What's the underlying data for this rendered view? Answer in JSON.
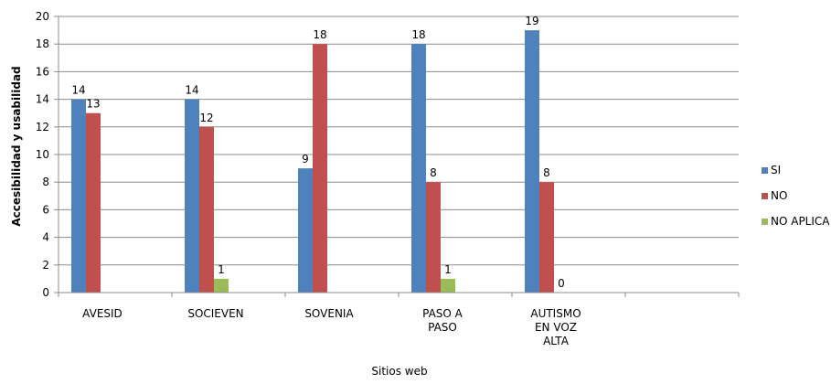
{
  "chart_data": {
    "type": "bar",
    "ylabel": "Accesibilidad y usabilidad",
    "xlabel": "Sitios web",
    "ylim": [
      0,
      20
    ],
    "yticks": [
      0,
      2,
      4,
      6,
      8,
      10,
      12,
      14,
      16,
      18,
      20
    ],
    "grid": true,
    "legend_position": "right",
    "categories": [
      [
        "AVESID"
      ],
      [
        "SOCIEVEN"
      ],
      [
        "SOVENIA"
      ],
      [
        "PASO A",
        "PASO"
      ],
      [
        "AUTISMO",
        "EN VOZ",
        "ALTA"
      ]
    ],
    "series": [
      {
        "name": "SI",
        "color": "#4f81bd",
        "values": [
          14,
          14,
          9,
          18,
          19
        ]
      },
      {
        "name": "NO",
        "color": "#c0504d",
        "values": [
          13,
          12,
          18,
          8,
          8
        ]
      },
      {
        "name": "NO APLICA",
        "color": "#9bbb59",
        "values": [
          null,
          1,
          null,
          1,
          0
        ]
      }
    ]
  }
}
